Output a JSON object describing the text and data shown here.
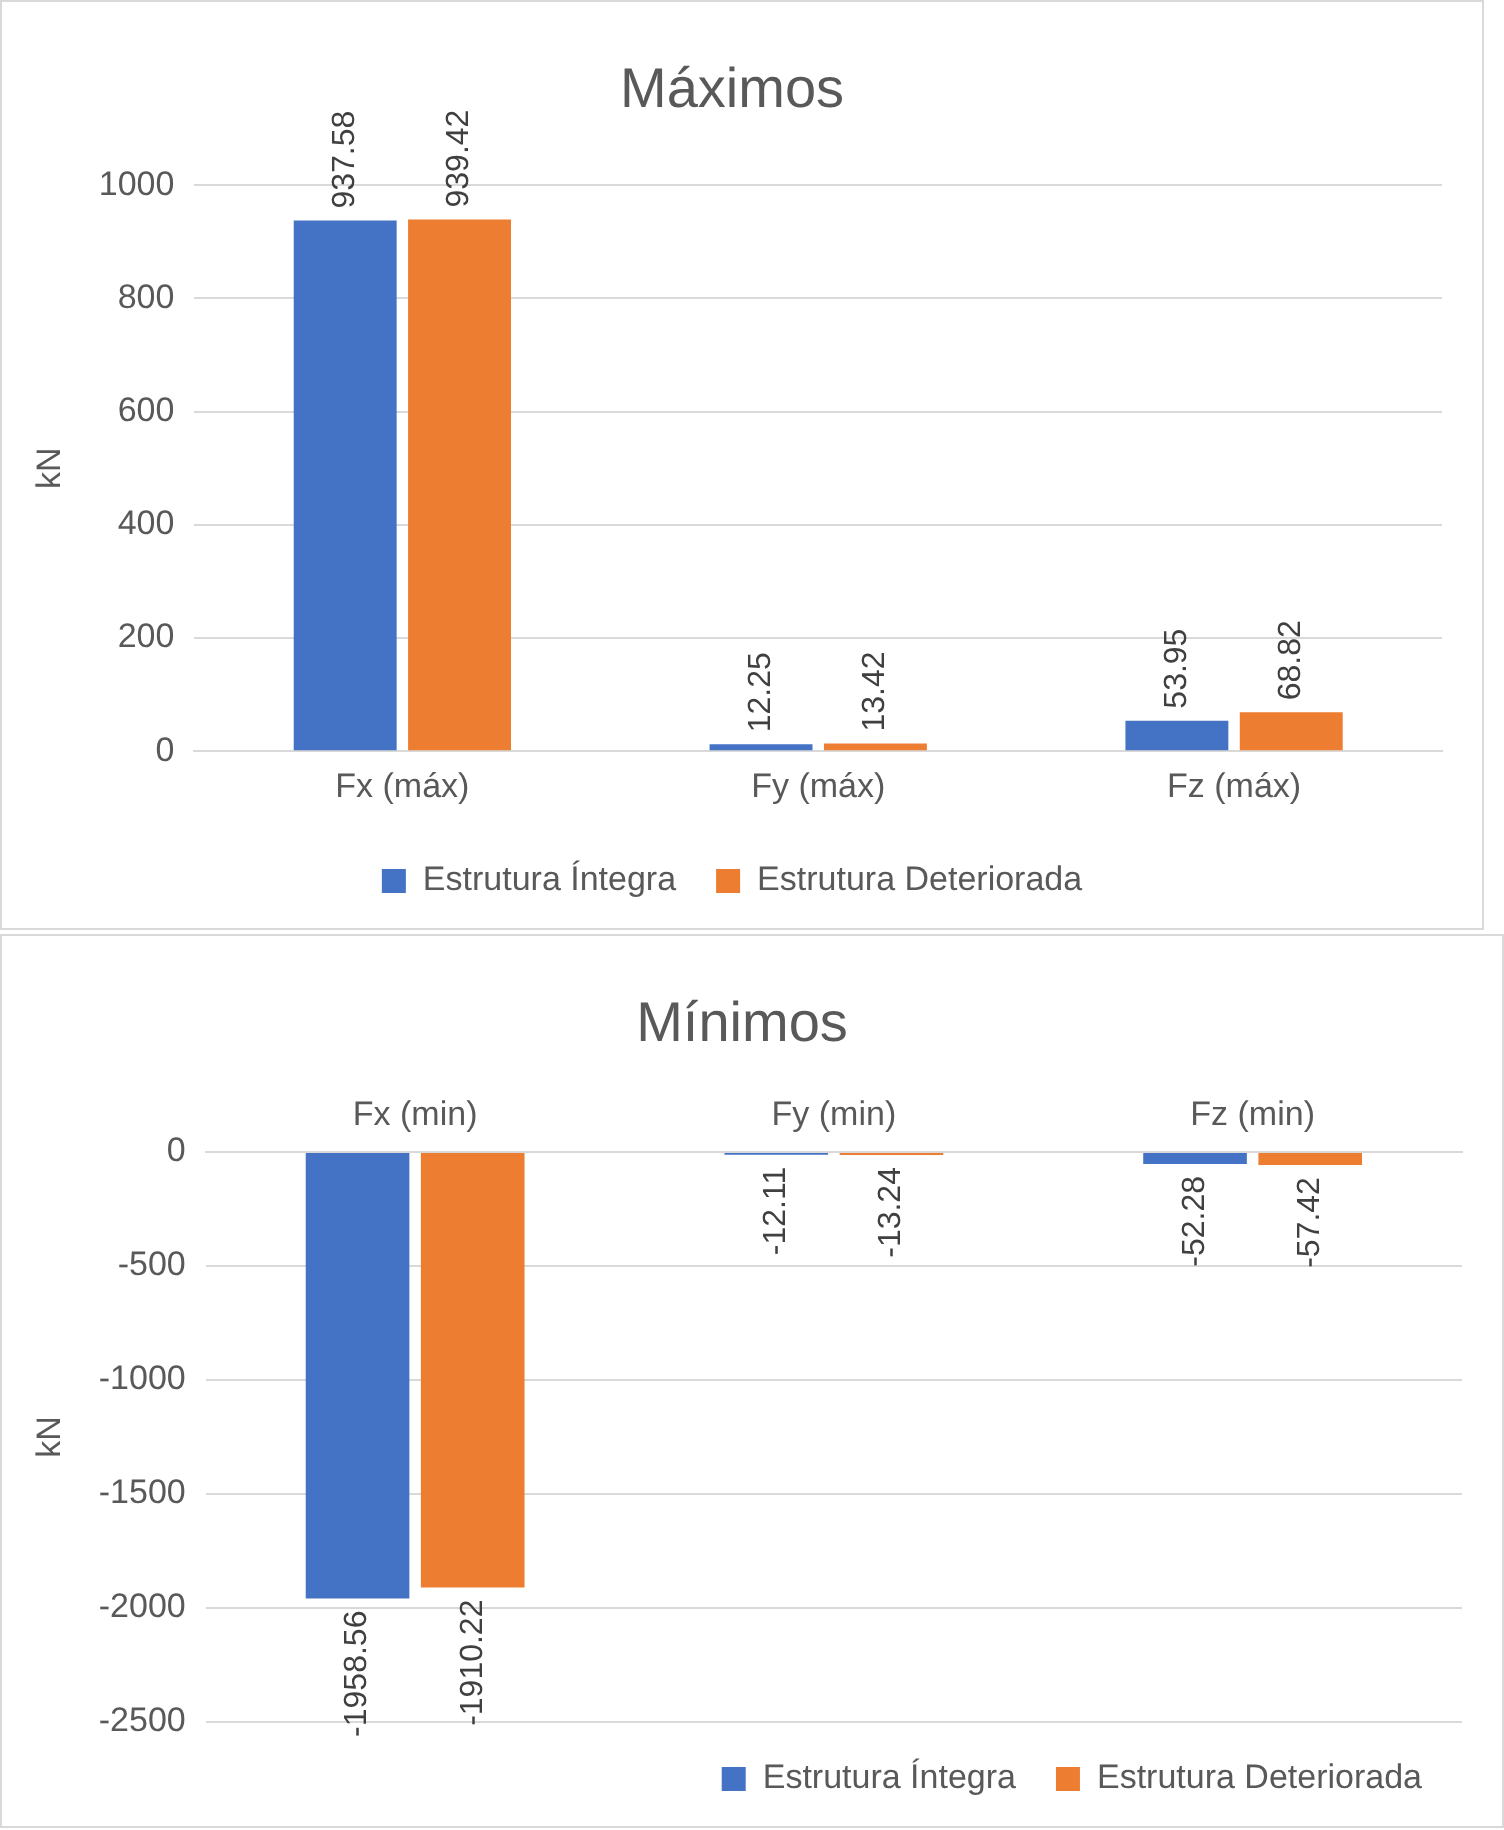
{
  "chart_data": [
    {
      "type": "bar",
      "title": "Máximos",
      "ylabel": "kN",
      "categories": [
        "Fx (máx)",
        "Fy (máx)",
        "Fz (máx)"
      ],
      "series": [
        {
          "name": "Estrutura Íntegra",
          "color": "#4472c4",
          "values": [
            937.58,
            12.25,
            53.95
          ]
        },
        {
          "name": "Estrutura Deteriorada",
          "color": "#ed7d31",
          "values": [
            939.42,
            13.42,
            68.82
          ]
        }
      ],
      "ylim": [
        0,
        1000
      ],
      "yticks": [
        0,
        200,
        400,
        600,
        800,
        1000
      ],
      "grid": "y",
      "legend": "bottom",
      "data_labels": true
    },
    {
      "type": "bar",
      "title": "Mínimos",
      "ylabel": "kN",
      "categories": [
        "Fx (min)",
        "Fy (min)",
        "Fz (min)"
      ],
      "series": [
        {
          "name": "Estrutura Íntegra",
          "color": "#4472c4",
          "values": [
            -1958.56,
            -12.11,
            -52.28
          ]
        },
        {
          "name": "Estrutura Deteriorada",
          "color": "#ed7d31",
          "values": [
            -1910.22,
            -13.24,
            -57.42
          ]
        }
      ],
      "ylim": [
        -2500,
        0
      ],
      "yticks": [
        -2500,
        -2000,
        -1500,
        -1000,
        -500,
        0
      ],
      "grid": "y",
      "legend": "bottom right",
      "data_labels": true
    }
  ]
}
